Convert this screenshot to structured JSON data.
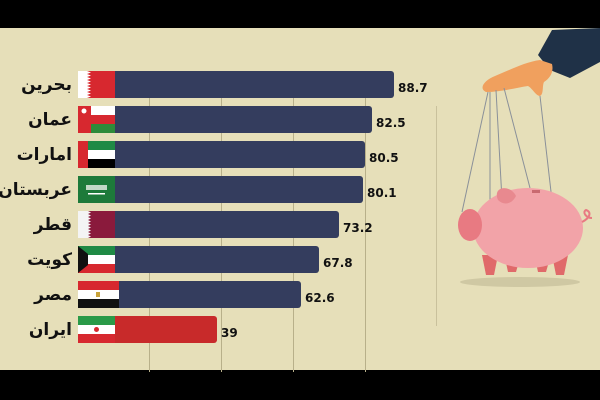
{
  "chart_data": {
    "type": "bar",
    "orientation": "horizontal",
    "title": "",
    "categories": [
      "بحرین",
      "عمان",
      "امارات",
      "عربستان",
      "قطر",
      "کویت",
      "مصر",
      "ایران"
    ],
    "categories_en": [
      "Bahrain",
      "Oman",
      "UAE",
      "Saudi Arabia",
      "Qatar",
      "Kuwait",
      "Egypt",
      "Iran"
    ],
    "values": [
      88.7,
      82.5,
      80.5,
      80.1,
      73.2,
      67.8,
      62.6,
      39
    ],
    "value_labels": [
      "88.7",
      "82.5",
      "80.5",
      "80.1",
      "73.2",
      "67.8",
      "62.6",
      "39"
    ],
    "xlabel": "",
    "ylabel": "",
    "grid": true,
    "bar_colors": [
      "#343d5e",
      "#343d5e",
      "#343d5e",
      "#343d5e",
      "#343d5e",
      "#343d5e",
      "#343d5e",
      "#c82a2a"
    ]
  },
  "colors": {
    "background": "#e6dfb9",
    "bar_default": "#343d5e",
    "bar_highlight": "#c82a2a",
    "letterbox": "#000000"
  },
  "illustration": {
    "description": "hand-puppeteering-piggy-bank"
  }
}
